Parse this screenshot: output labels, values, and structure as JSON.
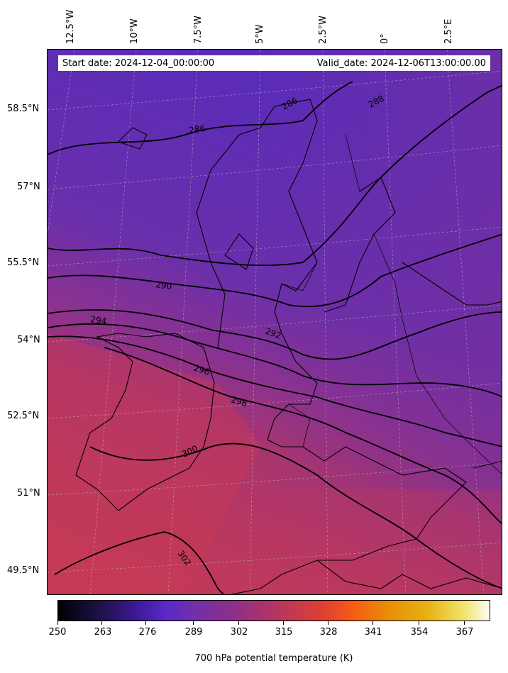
{
  "map": {
    "start_date": "Start date: 2024-12-04_00:00:00",
    "valid_date": "Valid_date: 2024-12-06T13:00:00.00",
    "lon_labels": [
      "12.5°W",
      "10°W",
      "7.5°W",
      "5°W",
      "2.5°W",
      "0°",
      "2.5°E"
    ],
    "lat_labels": [
      "58.5°N",
      "57°N",
      "55.5°N",
      "54°N",
      "52.5°N",
      "51°N",
      "49.5°N"
    ],
    "contour_labels": [
      "286",
      "286",
      "288",
      "290",
      "292",
      "294",
      "296",
      "298",
      "300",
      "302"
    ],
    "contour_levels_K": [
      286,
      288,
      290,
      292,
      294,
      296,
      298,
      300,
      302
    ],
    "colormap": "CMRmap",
    "field_range_K": [
      285,
      303
    ],
    "colors": {
      "cold_purple": "#5a2cb8",
      "mid_purple": "#7d2f96",
      "warm_red": "#c43a57"
    }
  },
  "colorbar": {
    "ticks": [
      "250",
      "263",
      "276",
      "289",
      "302",
      "315",
      "328",
      "341",
      "354",
      "367"
    ],
    "label": "700 hPa potential temperature (K)",
    "range": [
      250,
      380
    ]
  }
}
